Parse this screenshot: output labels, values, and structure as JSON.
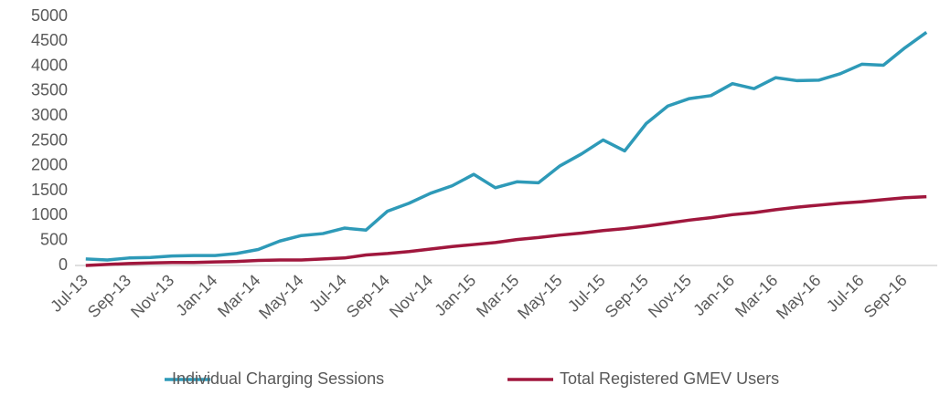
{
  "chart_data": {
    "type": "line",
    "categories": [
      "Jul-13",
      null,
      "Sep-13",
      null,
      "Nov-13",
      null,
      "Jan-14",
      null,
      "Mar-14",
      null,
      "May-14",
      null,
      "Jul-14",
      null,
      "Sep-14",
      null,
      "Nov-14",
      null,
      "Jan-15",
      null,
      "Mar-15",
      null,
      "May-15",
      null,
      "Jul-15",
      null,
      "Sep-15",
      null,
      "Nov-15",
      null,
      "Jan-16",
      null,
      "Mar-16",
      null,
      "May-16",
      null,
      "Jul-16",
      null,
      "Sep-16",
      null
    ],
    "series": [
      {
        "name": "Individual Charging Sessions",
        "color": "#2e9ab8",
        "values": [
          130,
          110,
          150,
          160,
          190,
          200,
          200,
          240,
          320,
          490,
          600,
          640,
          750,
          710,
          1090,
          1250,
          1450,
          1600,
          1830,
          1560,
          1680,
          1660,
          2000,
          2240,
          2520,
          2300,
          2850,
          3200,
          3350,
          3410,
          3650,
          3550,
          3770,
          3710,
          3720,
          3850,
          4040,
          4020,
          4370,
          4680
        ]
      },
      {
        "name": "Total Registered GMEV Users",
        "color": "#a0173d",
        "values": [
          0,
          20,
          40,
          50,
          60,
          60,
          70,
          80,
          100,
          110,
          110,
          130,
          150,
          210,
          240,
          280,
          330,
          380,
          420,
          460,
          520,
          560,
          610,
          650,
          700,
          740,
          790,
          850,
          910,
          960,
          1020,
          1060,
          1120,
          1170,
          1210,
          1250,
          1280,
          1320,
          1360,
          1380
        ]
      }
    ],
    "ylim": [
      0,
      5000
    ],
    "yticks": [
      0,
      500,
      1000,
      1500,
      2000,
      2500,
      3000,
      3500,
      4000,
      4500,
      5000
    ],
    "legend": "bottom"
  }
}
